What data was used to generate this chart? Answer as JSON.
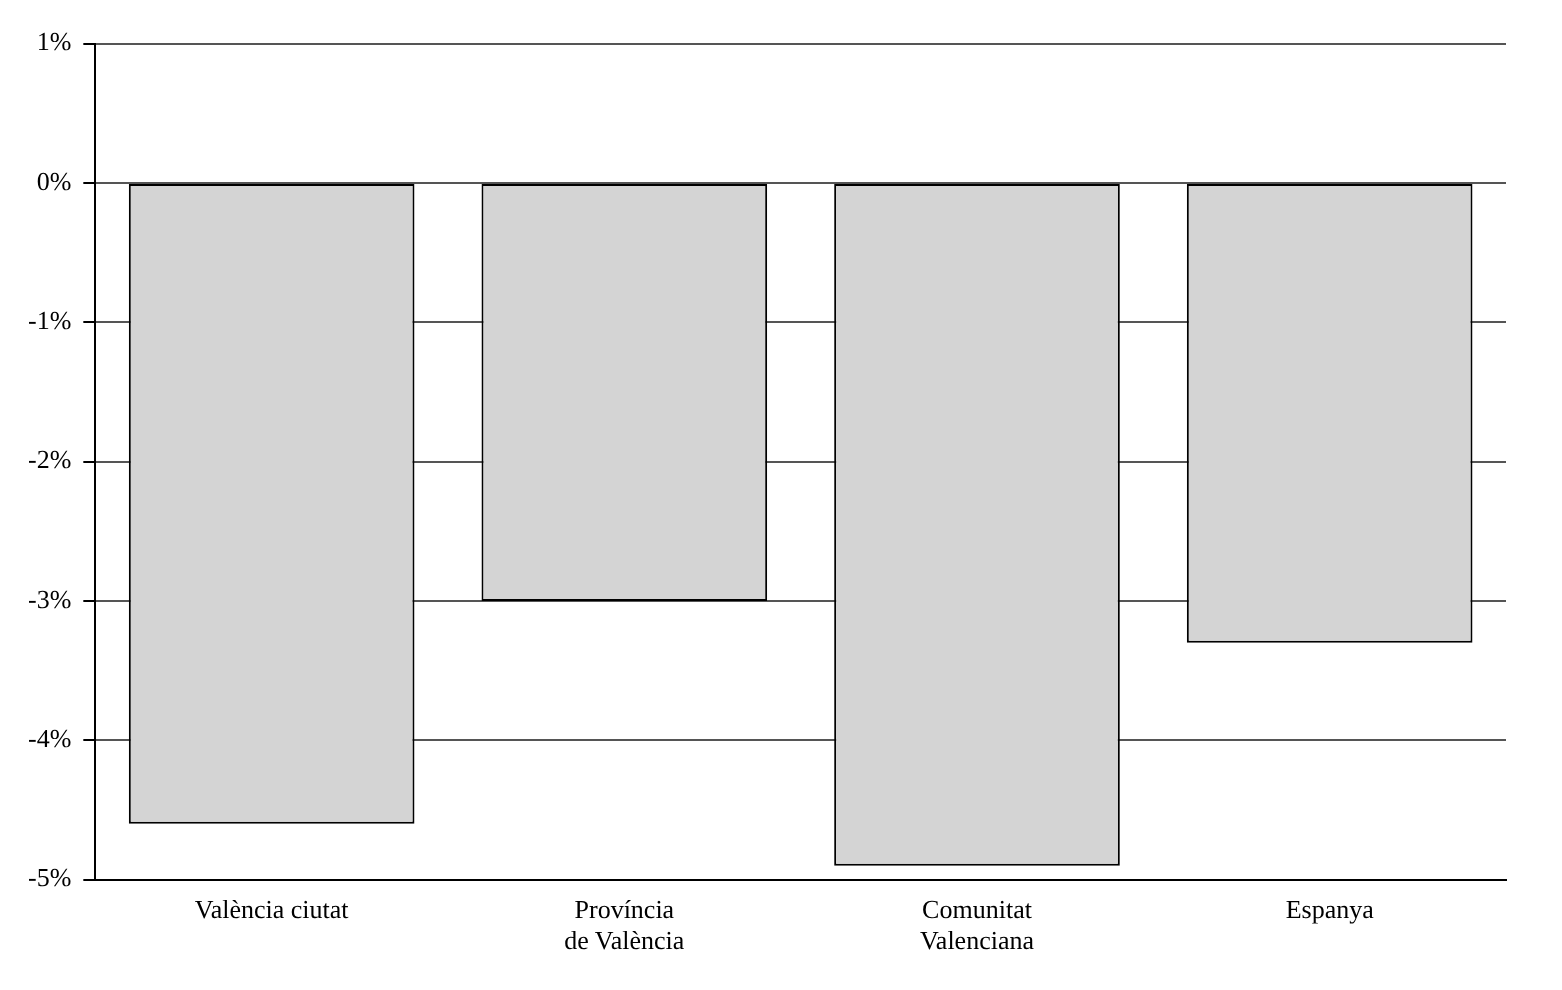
{
  "chart_data": {
    "type": "bar",
    "categories": [
      "València ciutat",
      "Província\nde València",
      "Comunitat\nValenciana",
      "Espanya"
    ],
    "values": [
      -4.6,
      -3.0,
      -4.9,
      -3.3
    ],
    "color": "#d4d4d4",
    "ylim": [
      -5,
      1
    ],
    "yticks": [
      {
        "value": 1,
        "label": "1%"
      },
      {
        "value": 0,
        "label": "0%"
      },
      {
        "value": -1,
        "label": "-1%"
      },
      {
        "value": -2,
        "label": "-2%"
      },
      {
        "value": -3,
        "label": "-3%"
      },
      {
        "value": -4,
        "label": "-4%"
      },
      {
        "value": -5,
        "label": "-5%"
      }
    ],
    "grid": "y",
    "legend": false
  }
}
